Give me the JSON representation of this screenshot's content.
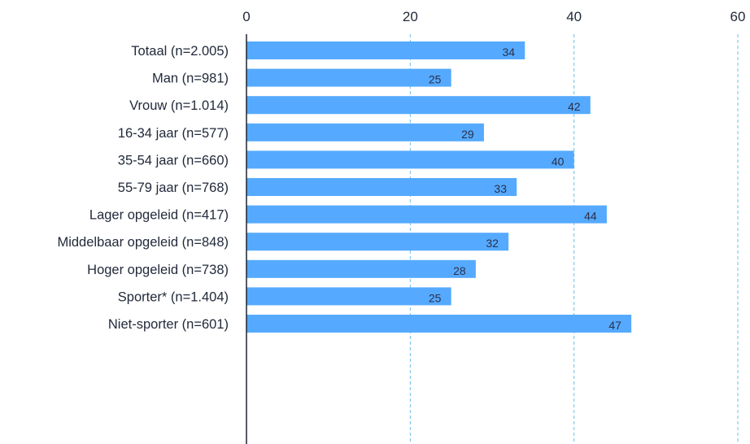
{
  "chart_data": {
    "type": "bar",
    "orientation": "horizontal",
    "categories": [
      "Totaal (n=2.005)",
      "Man (n=981)",
      "Vrouw (n=1.014)",
      "16-34 jaar (n=577)",
      "35-54 jaar (n=660)",
      "55-79 jaar (n=768)",
      "Lager opgeleid (n=417)",
      "Middelbaar opgeleid (n=848)",
      "Hoger opgeleid (n=738)",
      "Sporter* (n=1.404)",
      "Niet-sporter (n=601)"
    ],
    "values": [
      34,
      25,
      42,
      29,
      40,
      33,
      44,
      32,
      28,
      25,
      47
    ],
    "groups": [
      [
        0
      ],
      [
        1,
        2
      ],
      [
        3,
        4,
        5
      ],
      [
        6,
        7,
        8
      ],
      [
        9,
        10
      ]
    ],
    "xlim": [
      0,
      60
    ],
    "xticks": [
      0,
      20,
      40,
      60
    ],
    "xlabel": "",
    "ylabel": "",
    "title": "",
    "grid": "vertical dashed",
    "colors": {
      "bar": "#55aaff",
      "grid": "#6cc0e8",
      "axis": "#1f2333",
      "text": "#222a3a"
    }
  }
}
